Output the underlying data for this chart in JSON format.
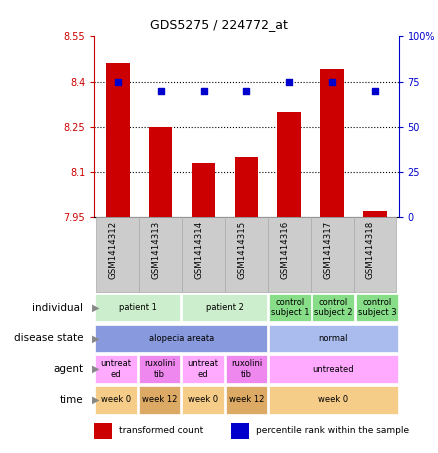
{
  "title": "GDS5275 / 224772_at",
  "samples": [
    "GSM1414312",
    "GSM1414313",
    "GSM1414314",
    "GSM1414315",
    "GSM1414316",
    "GSM1414317",
    "GSM1414318"
  ],
  "bar_values": [
    8.46,
    8.25,
    8.13,
    8.15,
    8.3,
    8.44,
    7.97
  ],
  "dot_values": [
    75,
    70,
    70,
    70,
    75,
    75,
    70
  ],
  "ylim": [
    7.95,
    8.55
  ],
  "ylim_right": [
    0,
    100
  ],
  "yticks_left": [
    7.95,
    8.1,
    8.25,
    8.4,
    8.55
  ],
  "yticks_right": [
    0,
    25,
    50,
    75,
    100
  ],
  "ytick_labels_right": [
    "0",
    "25",
    "50",
    "75",
    "100%"
  ],
  "bar_color": "#cc0000",
  "dot_color": "#0000cc",
  "individual_row": {
    "cells": [
      {
        "text": "patient 1",
        "colspan": 2,
        "color": "#cceecc"
      },
      {
        "text": "patient 2",
        "colspan": 2,
        "color": "#cceecc"
      },
      {
        "text": "control\nsubject 1",
        "colspan": 1,
        "color": "#88dd88"
      },
      {
        "text": "control\nsubject 2",
        "colspan": 1,
        "color": "#88dd88"
      },
      {
        "text": "control\nsubject 3",
        "colspan": 1,
        "color": "#88dd88"
      }
    ]
  },
  "disease_row": {
    "cells": [
      {
        "text": "alopecia areata",
        "colspan": 4,
        "color": "#8899dd"
      },
      {
        "text": "normal",
        "colspan": 3,
        "color": "#aabbee"
      }
    ]
  },
  "agent_row": {
    "cells": [
      {
        "text": "untreat\ned",
        "colspan": 1,
        "color": "#ffaaff"
      },
      {
        "text": "ruxolini\ntib",
        "colspan": 1,
        "color": "#ee88ee"
      },
      {
        "text": "untreat\ned",
        "colspan": 1,
        "color": "#ffaaff"
      },
      {
        "text": "ruxolini\ntib",
        "colspan": 1,
        "color": "#ee88ee"
      },
      {
        "text": "untreated",
        "colspan": 3,
        "color": "#ffaaff"
      }
    ]
  },
  "time_row": {
    "cells": [
      {
        "text": "week 0",
        "colspan": 1,
        "color": "#f5cc88"
      },
      {
        "text": "week 12",
        "colspan": 1,
        "color": "#ddaa66"
      },
      {
        "text": "week 0",
        "colspan": 1,
        "color": "#f5cc88"
      },
      {
        "text": "week 12",
        "colspan": 1,
        "color": "#ddaa66"
      },
      {
        "text": "week 0",
        "colspan": 3,
        "color": "#f5cc88"
      }
    ]
  },
  "row_labels": [
    "individual",
    "disease state",
    "agent",
    "time"
  ],
  "legend": [
    {
      "color": "#cc0000",
      "label": "transformed count"
    },
    {
      "color": "#0000cc",
      "label": "percentile rank within the sample"
    }
  ],
  "fig_width": 4.38,
  "fig_height": 4.53,
  "dpi": 100
}
